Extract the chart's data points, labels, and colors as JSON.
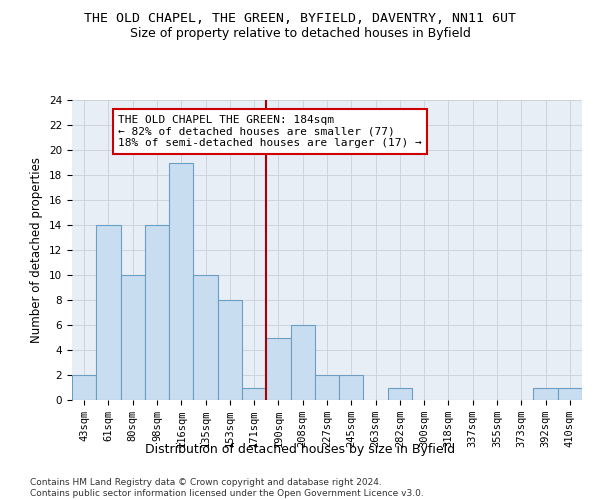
{
  "title": "THE OLD CHAPEL, THE GREEN, BYFIELD, DAVENTRY, NN11 6UT",
  "subtitle": "Size of property relative to detached houses in Byfield",
  "xlabel": "Distribution of detached houses by size in Byfield",
  "ylabel": "Number of detached properties",
  "categories": [
    "43sqm",
    "61sqm",
    "80sqm",
    "98sqm",
    "116sqm",
    "135sqm",
    "153sqm",
    "171sqm",
    "190sqm",
    "208sqm",
    "227sqm",
    "245sqm",
    "263sqm",
    "282sqm",
    "300sqm",
    "318sqm",
    "337sqm",
    "355sqm",
    "373sqm",
    "392sqm",
    "410sqm"
  ],
  "values": [
    2,
    14,
    10,
    14,
    19,
    10,
    8,
    1,
    5,
    6,
    2,
    2,
    0,
    1,
    0,
    0,
    0,
    0,
    0,
    1,
    1
  ],
  "bar_color": "#c9ddf0",
  "bar_edge_color": "#6a9ec5",
  "vline_x": 7.5,
  "vline_color": "#aa0000",
  "annotation_lines": [
    "THE OLD CHAPEL THE GREEN: 184sqm",
    "← 82% of detached houses are smaller (77)",
    "18% of semi-detached houses are larger (17) →"
  ],
  "annotation_box_color": "#cc0000",
  "ylim": [
    0,
    24
  ],
  "yticks": [
    0,
    2,
    4,
    6,
    8,
    10,
    12,
    14,
    16,
    18,
    20,
    22,
    24
  ],
  "grid_color": "#c8d0dc",
  "background_color": "#e8eef5",
  "footer": "Contains HM Land Registry data © Crown copyright and database right 2024.\nContains public sector information licensed under the Open Government Licence v3.0.",
  "title_fontsize": 9.5,
  "subtitle_fontsize": 9,
  "xlabel_fontsize": 9,
  "ylabel_fontsize": 8.5,
  "tick_fontsize": 7.5,
  "annotation_fontsize": 8,
  "footer_fontsize": 6.5
}
